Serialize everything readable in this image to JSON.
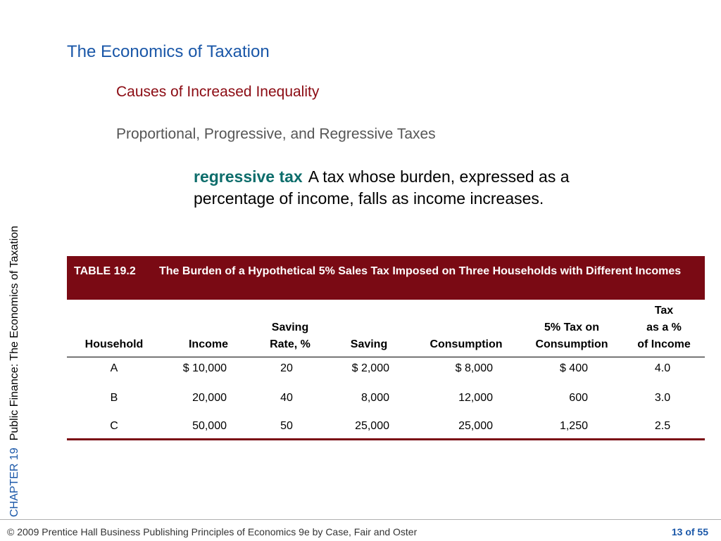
{
  "side": {
    "chapter": "CHAPTER 19",
    "subject": "Public Finance: The Economics of Taxation"
  },
  "slide": {
    "title": "The Economics of Taxation",
    "subtitle1": "Causes of Increased Inequality",
    "subtitle2": "Proportional, Progressive, and Regressive Taxes"
  },
  "definition": {
    "term": "regressive tax",
    "text": "A tax whose burden, expressed as a percentage of income, falls as income increases."
  },
  "table": {
    "number": "TABLE 19.2",
    "caption": "The Burden of a Hypothetical 5% Sales Tax Imposed on Three Households with Different Incomes",
    "headers": [
      "Household",
      "Income",
      "Saving\nRate, %",
      "Saving",
      "Consumption",
      "5% Tax on\nConsumption",
      "Tax\nas a %\nof Income"
    ],
    "rows": [
      [
        "A",
        "$ 10,000",
        "20",
        "$  2,000",
        "$ 8,000",
        "$  400",
        "4.0"
      ],
      [
        "B",
        "20,000",
        "40",
        "8,000",
        "12,000",
        "600",
        "3.0"
      ],
      [
        "C",
        "50,000",
        "50",
        "25,000",
        "25,000",
        "1,250",
        "2.5"
      ]
    ]
  },
  "footer": {
    "copyright": "© 2009 Prentice Hall Business Publishing   Principles of Economics 9e by Case, Fair and Oster",
    "page": "13 of 55"
  }
}
